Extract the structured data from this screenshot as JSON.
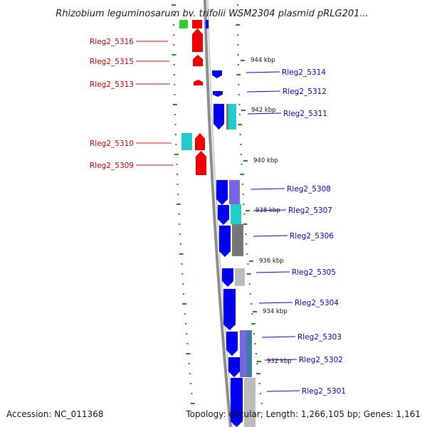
{
  "title": "Rhizobium leguminosarum bv. trifolii WSM2304 plasmid pRLG201...",
  "footer": {
    "accession": "Accession: NC_011368",
    "summary": "Topology: circular; Length: 1,266,105 bp; Genes: 1,161"
  },
  "kbp_labels": [
    "944 kbp",
    "942 kbp",
    "940 kbp",
    "938 kbp",
    "936 kbp",
    "934 kbp",
    "932 kbp"
  ],
  "left_genes": [
    "Rleg2_5316",
    "Rleg2_5315",
    "Rleg2_5313",
    "Rleg2_5310",
    "Rleg2_5309"
  ],
  "right_genes": [
    "Rleg2_5314",
    "Rleg2_5312",
    "Rleg2_5311",
    "Rleg2_5308",
    "Rleg2_5307",
    "Rleg2_5306",
    "Rleg2_5305",
    "Rleg2_5304",
    "Rleg2_5303",
    "Rleg2_5302",
    "Rleg2_5301"
  ],
  "colors": {
    "forward_strand": "#ee0000",
    "reverse_strand": "#0000ee",
    "backbone": "#8c8c8c",
    "tick": "#1f8a1f",
    "cog_cyan": "#22cccc",
    "cog_green": "#33cc33",
    "cog_purple": "#7766dd",
    "cog_gray": "#777777",
    "cog_light": "#bbbbbb",
    "cog_steel": "#4477aa"
  }
}
